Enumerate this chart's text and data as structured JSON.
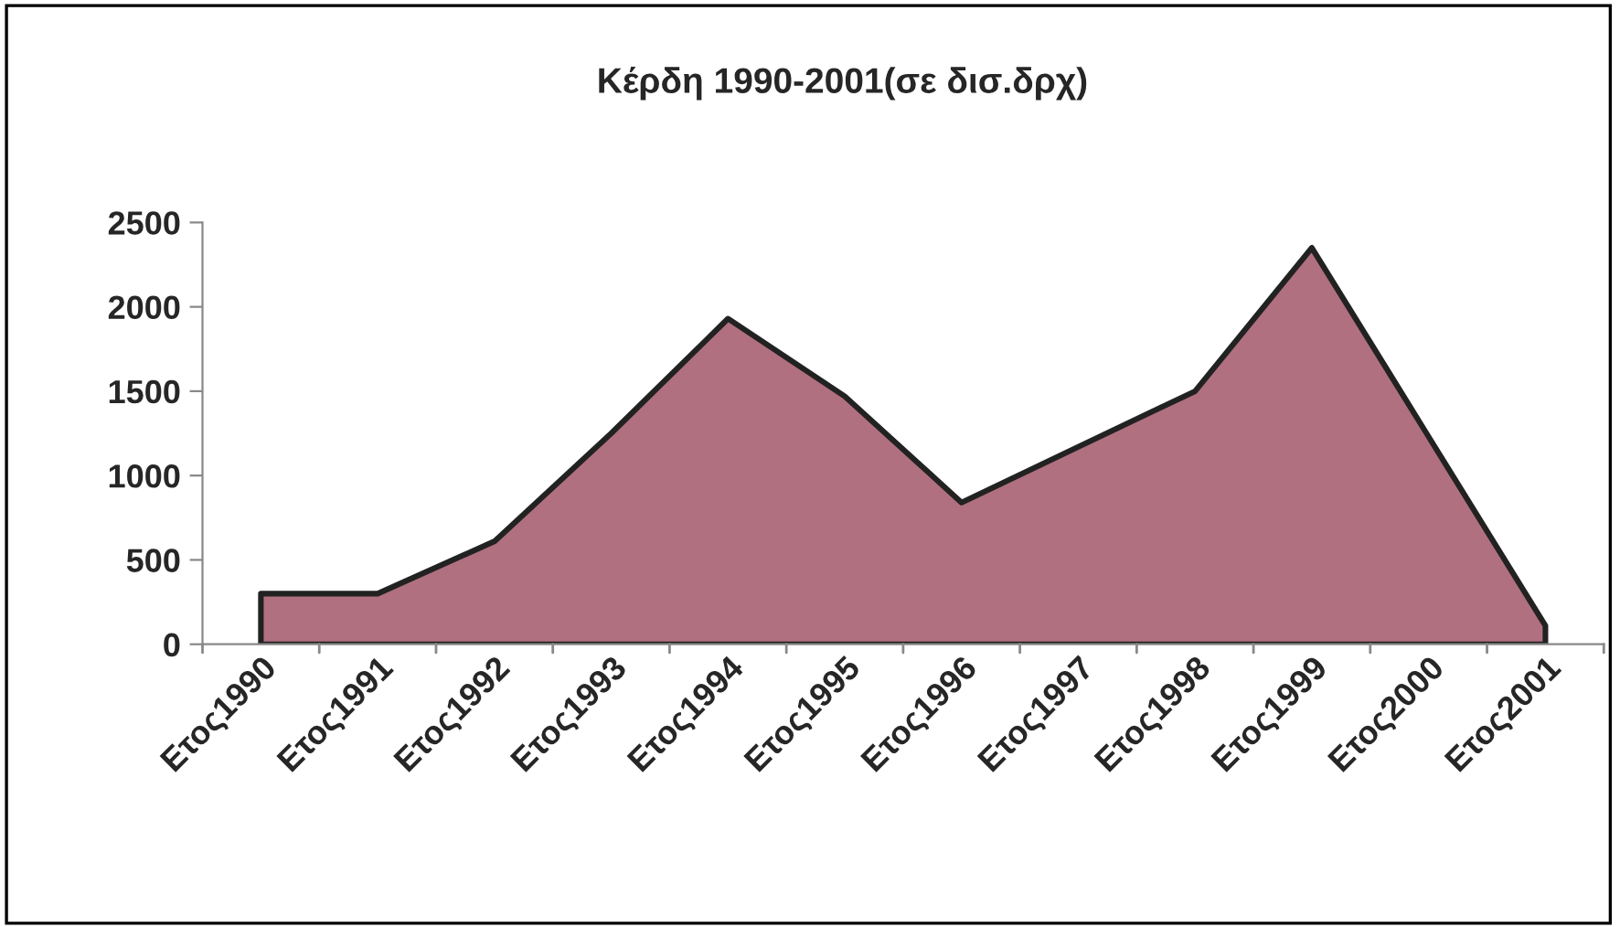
{
  "chart_data": {
    "type": "area",
    "title": "Κέρδη 1990-2001(σε δισ.δρχ)",
    "categories": [
      "Ετος1990",
      "Ετος1991",
      "Ετος1992",
      "Ετος1993",
      "Ετος1994",
      "Ετος1995",
      "Ετος1996",
      "Ετος1997",
      "Ετος1998",
      "Ετος1999",
      "Ετος2000",
      "Ετος2001"
    ],
    "series": [
      {
        "color": "#b0707f",
        "values": [
          300,
          300,
          610,
          1250,
          1930,
          1470,
          840,
          1170,
          1500,
          2350,
          1230,
          110
        ]
      }
    ],
    "ylim": [
      0,
      2500
    ],
    "yticks": [
      0,
      500,
      1000,
      1500,
      2000,
      2500
    ],
    "grid": false,
    "legend": false
  }
}
